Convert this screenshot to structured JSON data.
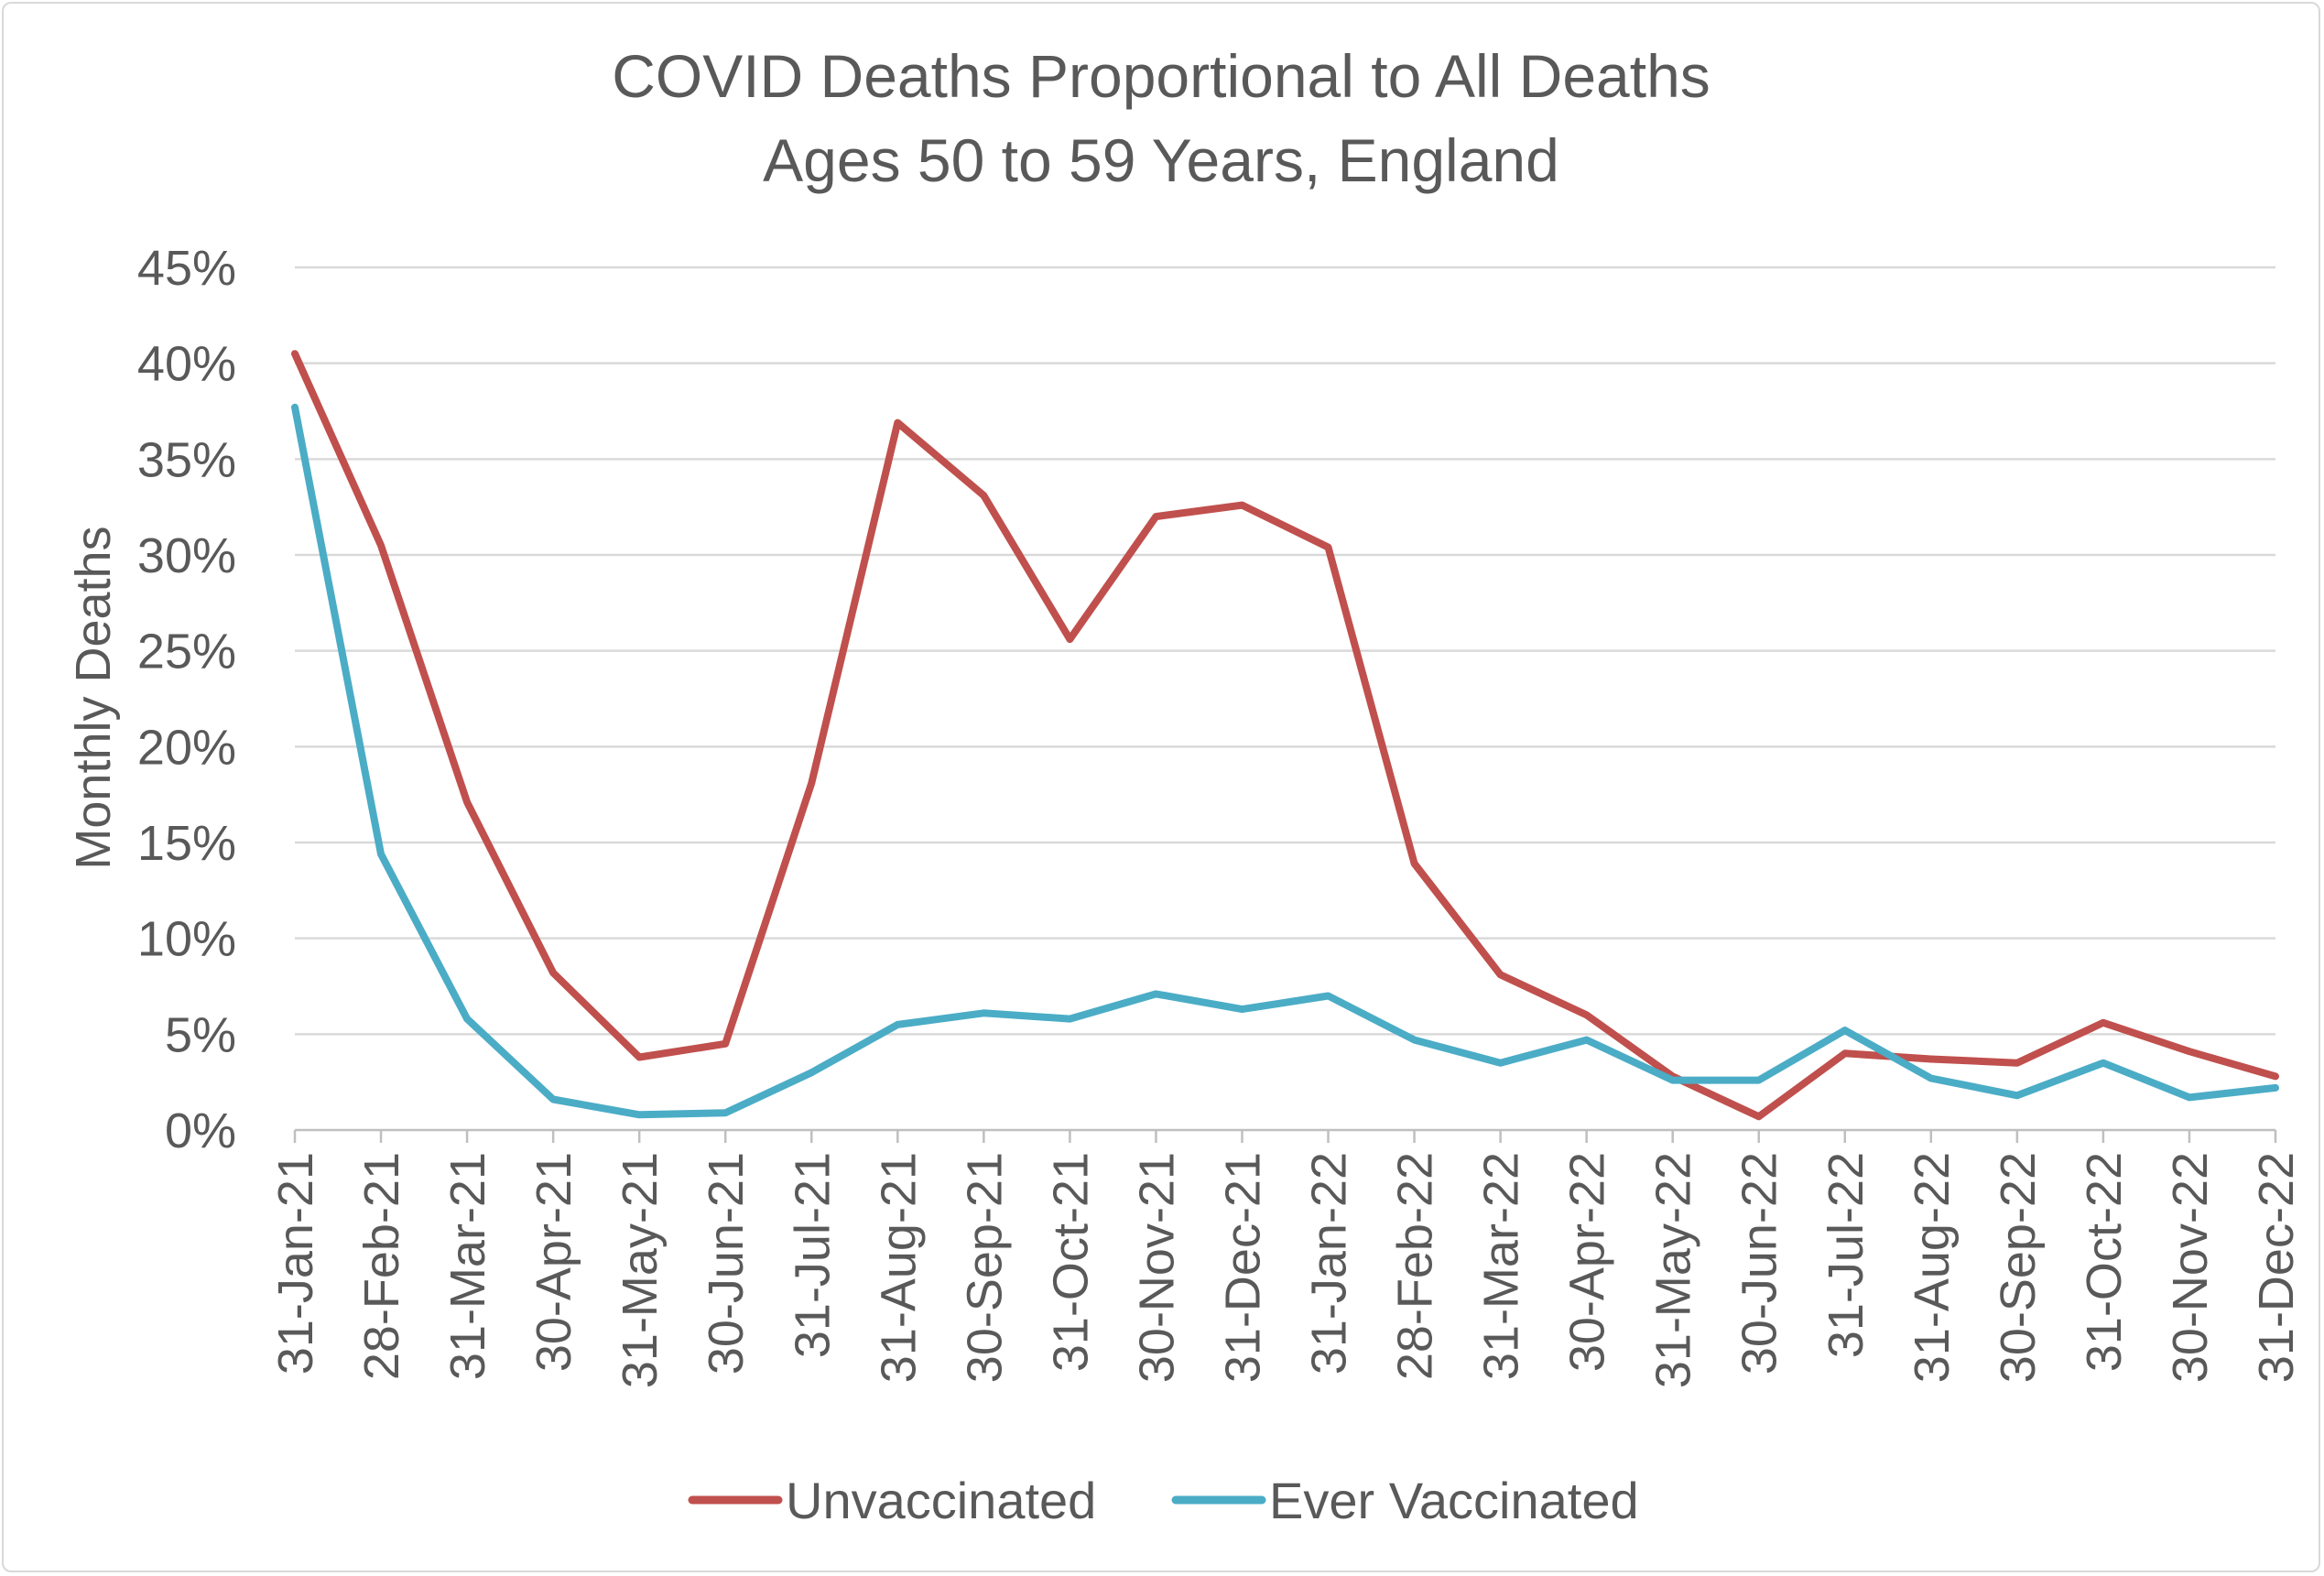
{
  "chart_data": {
    "type": "line",
    "title": "COVID Deaths Proportional to All Deaths",
    "subtitle": "Ages 50 to 59 Years, England",
    "xlabel": "",
    "ylabel": "Monthly Deaths",
    "ylim": [
      0,
      0.45
    ],
    "yticks": [
      0,
      0.05,
      0.1,
      0.15,
      0.2,
      0.25,
      0.3,
      0.35,
      0.4,
      0.45
    ],
    "ytick_labels": [
      "0%",
      "5%",
      "10%",
      "15%",
      "20%",
      "25%",
      "30%",
      "35%",
      "40%",
      "45%"
    ],
    "grid": true,
    "legend_position": "bottom",
    "categories": [
      "31-Jan-21",
      "28-Feb-21",
      "31-Mar-21",
      "30-Apr-21",
      "31-May-21",
      "30-Jun-21",
      "31-Jul-21",
      "31-Aug-21",
      "30-Sep-21",
      "31-Oct-21",
      "30-Nov-21",
      "31-Dec-21",
      "31-Jan-22",
      "28-Feb-22",
      "31-Mar-22",
      "30-Apr-22",
      "31-May-22",
      "30-Jun-22",
      "31-Jul-22",
      "31-Aug-22",
      "30-Sep-22",
      "31-Oct-22",
      "30-Nov-22",
      "31-Dec-22"
    ],
    "series": [
      {
        "name": "Unvaccinated",
        "color": "#c0504d",
        "values": [
          0.405,
          0.305,
          0.171,
          0.082,
          0.038,
          0.045,
          0.181,
          0.369,
          0.331,
          0.256,
          0.32,
          0.326,
          0.304,
          0.139,
          0.081,
          0.06,
          0.028,
          0.007,
          0.04,
          0.037,
          0.035,
          0.056,
          0.041,
          0.028
        ]
      },
      {
        "name": "Ever Vaccinated",
        "color": "#4bacc6",
        "values": [
          0.377,
          0.144,
          0.058,
          0.016,
          0.008,
          0.009,
          0.03,
          0.055,
          0.061,
          0.058,
          0.071,
          0.063,
          0.07,
          0.047,
          0.035,
          0.047,
          0.026,
          0.026,
          0.052,
          0.027,
          0.018,
          0.035,
          0.017,
          0.022
        ]
      }
    ]
  }
}
